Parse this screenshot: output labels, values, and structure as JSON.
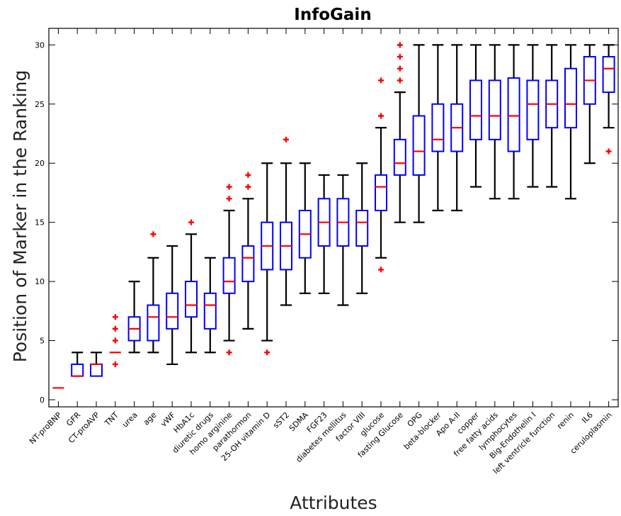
{
  "chart_data": {
    "type": "box",
    "title": "InfoGain",
    "xlabel": "Attributes",
    "ylabel": "Position of Marker in the Ranking",
    "ylim": [
      -0.6,
      31.4
    ],
    "yticks": [
      0,
      5,
      10,
      15,
      20,
      25,
      30
    ],
    "grid": false,
    "colors": {
      "box": "#0000ff",
      "median": "#ff0000",
      "whisker": "#000000",
      "outlier": "#ff0000"
    },
    "categories": [
      "NT-proBNP",
      "GFR",
      "CT-proAVP",
      "TNT",
      "urea",
      "age",
      "vWF",
      "HbA1c",
      "diuretic drugs",
      "homo arginine",
      "parathormon",
      "25-OH vitamin D",
      "sST2",
      "SDMA",
      "FGF23",
      "diabetes mellitus",
      "factor VIII",
      "glucose",
      "fasting Glucose",
      "OPG",
      "beta-blocker",
      "Apo A-II",
      "copper",
      "free fatty acids",
      "lymphocytes",
      "Big-Endothelin I",
      "left ventricle function",
      "renin",
      "IL6",
      "ceruloplasmin"
    ],
    "boxes": [
      {
        "min": 1,
        "q1": 1,
        "median": 1,
        "q3": 1,
        "max": 1,
        "outliers": []
      },
      {
        "min": 2,
        "q1": 2,
        "median": 2,
        "q3": 3,
        "max": 4,
        "outliers": []
      },
      {
        "min": 2,
        "q1": 2,
        "median": 3,
        "q3": 3,
        "max": 4,
        "outliers": []
      },
      {
        "min": 4,
        "q1": 4,
        "median": 4,
        "q3": 4,
        "max": 4,
        "outliers": [
          3,
          5,
          6,
          7
        ]
      },
      {
        "min": 4,
        "q1": 5,
        "median": 6,
        "q3": 7,
        "max": 10,
        "outliers": []
      },
      {
        "min": 4,
        "q1": 5,
        "median": 7,
        "q3": 8,
        "max": 12,
        "outliers": [
          14
        ]
      },
      {
        "min": 3,
        "q1": 6,
        "median": 7,
        "q3": 9,
        "max": 13,
        "outliers": []
      },
      {
        "min": 4,
        "q1": 7,
        "median": 8,
        "q3": 10,
        "max": 14,
        "outliers": [
          15
        ]
      },
      {
        "min": 4,
        "q1": 6,
        "median": 8,
        "q3": 9,
        "max": 12,
        "outliers": []
      },
      {
        "min": 5,
        "q1": 9,
        "median": 10,
        "q3": 12,
        "max": 16,
        "outliers": [
          4,
          17,
          18
        ]
      },
      {
        "min": 6,
        "q1": 10,
        "median": 12,
        "q3": 13,
        "max": 17,
        "outliers": [
          18,
          19
        ]
      },
      {
        "min": 5,
        "q1": 11,
        "median": 13,
        "q3": 15,
        "max": 20,
        "outliers": [
          4
        ]
      },
      {
        "min": 8,
        "q1": 11,
        "median": 13,
        "q3": 15,
        "max": 20,
        "outliers": [
          22
        ]
      },
      {
        "min": 9,
        "q1": 12,
        "median": 14,
        "q3": 16,
        "max": 20,
        "outliers": []
      },
      {
        "min": 9,
        "q1": 13,
        "median": 15,
        "q3": 17,
        "max": 19,
        "outliers": []
      },
      {
        "min": 8,
        "q1": 13,
        "median": 15,
        "q3": 17,
        "max": 19,
        "outliers": []
      },
      {
        "min": 9,
        "q1": 13,
        "median": 15,
        "q3": 16,
        "max": 20,
        "outliers": []
      },
      {
        "min": 12,
        "q1": 16,
        "median": 18,
        "q3": 19,
        "max": 23,
        "outliers": [
          11,
          24,
          27
        ]
      },
      {
        "min": 15,
        "q1": 19,
        "median": 20,
        "q3": 22,
        "max": 26,
        "outliers": [
          27,
          28,
          29,
          30
        ]
      },
      {
        "min": 15,
        "q1": 19,
        "median": 21,
        "q3": 24,
        "max": 30,
        "outliers": []
      },
      {
        "min": 16,
        "q1": 21,
        "median": 22,
        "q3": 25,
        "max": 30,
        "outliers": []
      },
      {
        "min": 16,
        "q1": 21,
        "median": 23,
        "q3": 25,
        "max": 30,
        "outliers": []
      },
      {
        "min": 18,
        "q1": 22,
        "median": 24,
        "q3": 27,
        "max": 30,
        "outliers": []
      },
      {
        "min": 17,
        "q1": 22,
        "median": 24,
        "q3": 27,
        "max": 30,
        "outliers": []
      },
      {
        "min": 17,
        "q1": 21,
        "median": 24,
        "q3": 27.2,
        "max": 30,
        "outliers": []
      },
      {
        "min": 18,
        "q1": 22,
        "median": 25,
        "q3": 27,
        "max": 30,
        "outliers": []
      },
      {
        "min": 18,
        "q1": 23,
        "median": 25,
        "q3": 27,
        "max": 30,
        "outliers": []
      },
      {
        "min": 17,
        "q1": 23,
        "median": 25,
        "q3": 28,
        "max": 30,
        "outliers": []
      },
      {
        "min": 20,
        "q1": 25,
        "median": 27,
        "q3": 29,
        "max": 30,
        "outliers": []
      },
      {
        "min": 23,
        "q1": 26,
        "median": 28,
        "q3": 29,
        "max": 30,
        "outliers": [
          21
        ]
      }
    ]
  }
}
